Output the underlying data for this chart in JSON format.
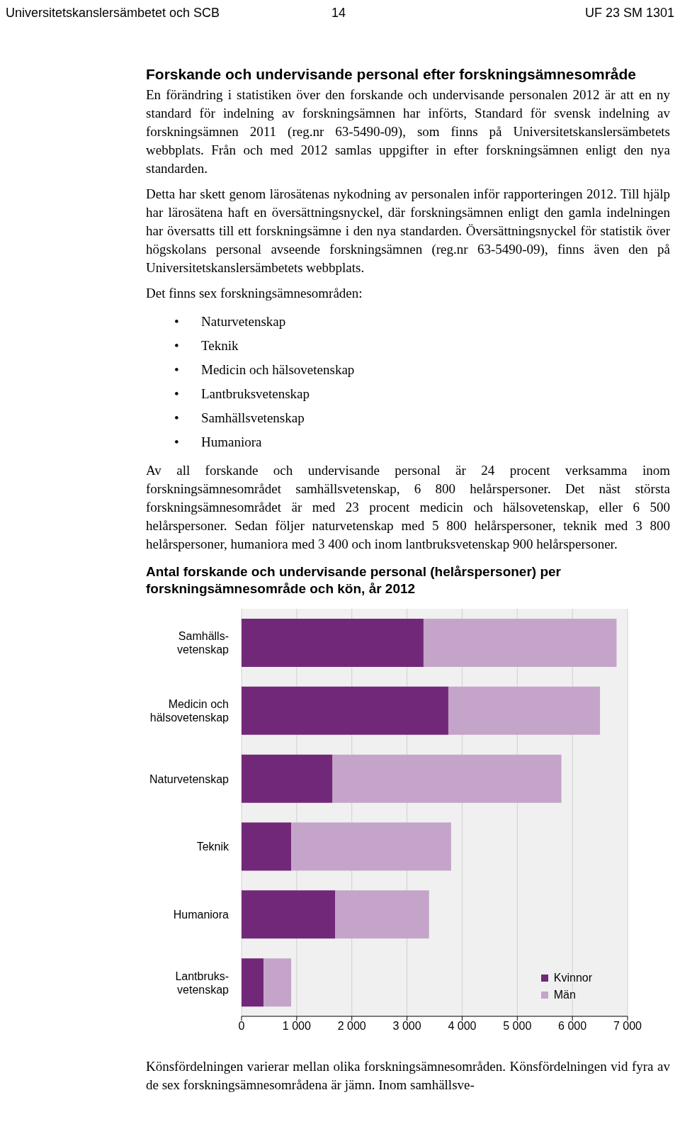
{
  "chart_data": {
    "type": "bar",
    "orientation": "horizontal",
    "stacked": true,
    "title": "Antal forskande och undervisande personal (helårspersoner) per forskningsämnesområde och kön, år 2012",
    "categories": [
      "Samhälls-vetenskap",
      "Medicin och hälsovetenskap",
      "Naturvetenskap",
      "Teknik",
      "Humaniora",
      "Lantbruks-vetenskap"
    ],
    "series": [
      {
        "name": "Kvinnor",
        "color": "#722878",
        "values": [
          3300,
          3750,
          1650,
          900,
          1700,
          400
        ]
      },
      {
        "name": "Män",
        "color": "#c4a5c9",
        "values": [
          3500,
          2750,
          4150,
          2900,
          1700,
          500
        ]
      }
    ],
    "xlim": [
      0,
      7000
    ],
    "xticks": [
      0,
      {
        "value": 1000,
        "label": "1 000"
      },
      {
        "value": 2000,
        "label": "2 000"
      },
      {
        "value": 3000,
        "label": "3 000"
      },
      {
        "value": 4000,
        "label": "4 000"
      },
      {
        "value": 5000,
        "label": "5 000"
      },
      {
        "value": 6000,
        "label": "6 000"
      },
      {
        "value": 7000,
        "label": "7 000"
      }
    ],
    "grid": "x",
    "legend": "bottom right",
    "annotations": [
      "Universitetskanslersämbetet och SCB",
      "14",
      "UF 23 SM 1301",
      "Forskande och undervisande personal efter forskningsämnesområde",
      "En förändring i statistiken över den forskande och undervisande personalen 2012 är att en ny standard för indelning av forskningsämnen har införts, Standard för svensk indelning av forskningsämnen 2011 (reg.nr 63-5490-09), som finns på Universitetskanslersämbetets webbplats. Från och med 2012 samlas uppgifter in efter forskningsämnen enligt den nya standarden.",
      "Detta har skett genom lärosätenas nykodning av personalen inför rapporteringen 2012. Till hjälp har lärosätena haft en översättningsnyckel, där forskningsämnen enligt den gamla indelningen har översatts till ett forskningsämne i den nya standarden. Översättningsnyckel för statistik över högskolans personal avseende forskningsämnen (reg.nr 63-5490-09), finns även den på Universitetskanslersämbetets webbplats.",
      "Det finns sex forskningsämnesområden:",
      "• Naturvetenskap",
      "• Teknik",
      "• Medicin och hälsovetenskap",
      "• Lantbruksvetenskap",
      "• Samhällsvetenskap",
      "• Humaniora",
      "Av all forskande och undervisande personal är 24 procent verksamma inom forskningsämnesområdet samhällsvetenskap, 6 800 helårspersoner. Det näst största forskningsämnesområdet är med 23 procent medicin och hälsovetenskap, eller 6 500 helårspersoner. Sedan följer naturvetenskap med 5 800 helårspersoner, teknik med 3 800 helårspersoner, humaniora med 3 400 och inom lantbruksvetenskap 900 helårspersoner.",
      "Könsfördelningen varierar mellan olika forskningsämnesområden. Könsfördelningen vid fyra av de sex forskningsämnesområdena är jämn. Inom samhällsve-"
    ]
  }
}
